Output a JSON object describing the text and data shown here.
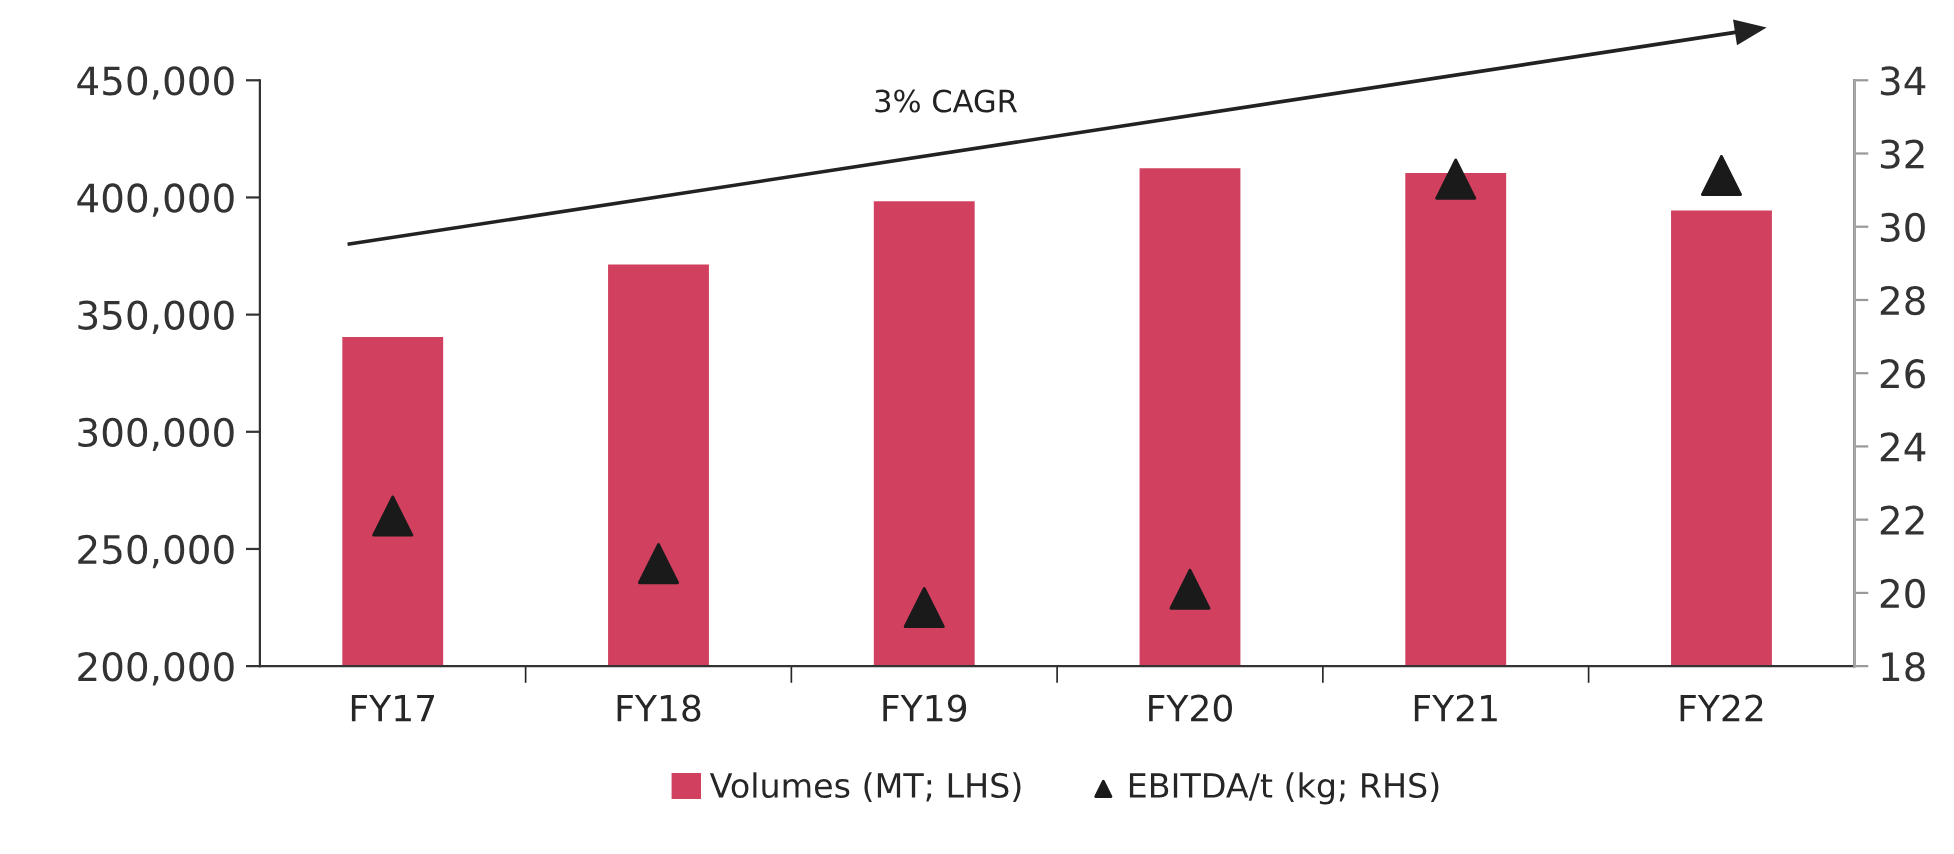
{
  "chart_data": {
    "type": "bar",
    "categories": [
      "FY17",
      "FY18",
      "FY19",
      "FY20",
      "FY21",
      "FY22"
    ],
    "series": [
      {
        "name": "Volumes (MT; LHS)",
        "color": "#d1415f",
        "values": [
          341000,
          372000,
          399000,
          413000,
          411000,
          395000
        ]
      },
      {
        "name": "EBITDA/t (kg; RHS)",
        "type": "scatter",
        "axis": "y2",
        "marker": "triangle",
        "color": "#1a1a1a",
        "values": [
          22.1,
          20.8,
          19.6,
          20.1,
          31.3,
          31.4
        ]
      }
    ],
    "ylim": [
      200000,
      450000
    ],
    "yticks": [
      {
        "value": 200000,
        "label": "200,000"
      },
      {
        "value": 250000,
        "label": "250,000"
      },
      {
        "value": 300000,
        "label": "300,000"
      },
      {
        "value": 350000,
        "label": "350,000"
      },
      {
        "value": 400000,
        "label": "400,000"
      },
      {
        "value": 450000,
        "label": "450,000"
      }
    ],
    "y2lim": [
      18,
      34
    ],
    "y2ticks": [
      18,
      20,
      22,
      24,
      26,
      28,
      30,
      32,
      34
    ],
    "annotations": [
      "3% CAGR"
    ],
    "grid": false,
    "legend": "bottom"
  }
}
